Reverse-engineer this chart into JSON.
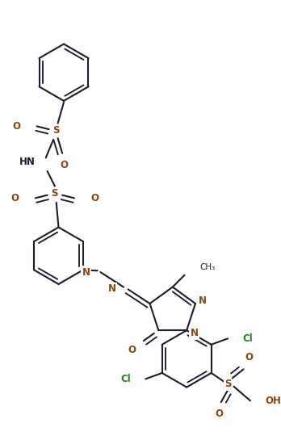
{
  "bg_color": "#ffffff",
  "line_color": "#1c1c2e",
  "n_color": "#8B4513",
  "o_color": "#8B4513",
  "cl_color": "#2d7a2d",
  "s_color": "#8B4513",
  "bond_lw": 1.5,
  "font_size": 8.5,
  "figsize": [
    3.48,
    5.45
  ],
  "dpi": 100,
  "xlim": [
    0,
    348
  ],
  "ylim": [
    0,
    545
  ]
}
